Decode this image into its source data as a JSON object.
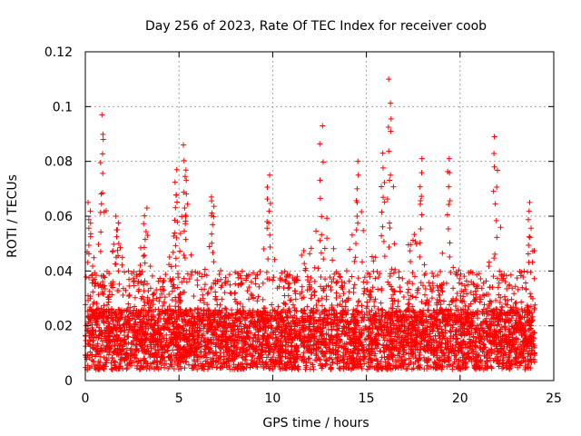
{
  "chart_data": {
    "type": "scatter",
    "title": "Day 256 of 2023, Rate Of TEC Index for receiver coob",
    "xlabel": "GPS time / hours",
    "ylabel": "ROTI / TECUs",
    "xlim": [
      0,
      25
    ],
    "ylim": [
      0,
      0.12
    ],
    "xticks": [
      0,
      5,
      10,
      15,
      20,
      25
    ],
    "xtick_labels": [
      "0",
      "5",
      "10",
      "15",
      "20",
      "25"
    ],
    "yticks": [
      0,
      0.02,
      0.04,
      0.06,
      0.08,
      0.1,
      0.12
    ],
    "ytick_labels": [
      "0",
      "0.02",
      "0.04",
      "0.06",
      "0.08",
      "0.1",
      "0.12"
    ],
    "grid": true,
    "marker": "+",
    "series_color": "#ff0000",
    "data_range_x": [
      0,
      24
    ],
    "baseline_roti": 0.015,
    "typical_upper_envelope": 0.04,
    "notable_peaks": [
      {
        "x": 0.2,
        "y": 0.065
      },
      {
        "x": 0.9,
        "y": 0.097
      },
      {
        "x": 1.7,
        "y": 0.06
      },
      {
        "x": 3.2,
        "y": 0.063
      },
      {
        "x": 4.8,
        "y": 0.077
      },
      {
        "x": 5.3,
        "y": 0.086
      },
      {
        "x": 6.8,
        "y": 0.067
      },
      {
        "x": 9.8,
        "y": 0.075
      },
      {
        "x": 12.6,
        "y": 0.093
      },
      {
        "x": 14.5,
        "y": 0.08
      },
      {
        "x": 15.9,
        "y": 0.083
      },
      {
        "x": 16.2,
        "y": 0.11
      },
      {
        "x": 17.9,
        "y": 0.081
      },
      {
        "x": 19.4,
        "y": 0.081
      },
      {
        "x": 21.9,
        "y": 0.089
      },
      {
        "x": 23.7,
        "y": 0.065
      }
    ]
  }
}
